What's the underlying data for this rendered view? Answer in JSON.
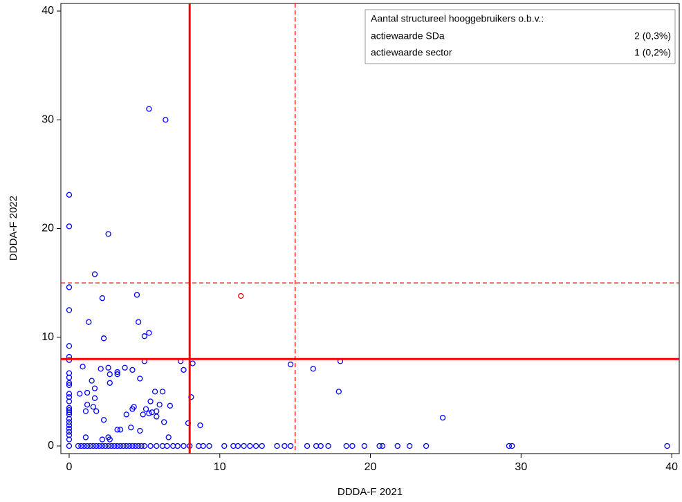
{
  "chart_data": {
    "type": "scatter",
    "x_label": "DDDA-F 2021",
    "y_label": "DDDA-F 2022",
    "xlim": [
      -0.55,
      40.5
    ],
    "ylim": [
      -0.7,
      40.7
    ],
    "xticks": [
      0,
      10,
      20,
      30,
      40
    ],
    "yticks": [
      0,
      10,
      20,
      30,
      40
    ],
    "grid": false,
    "ref_color": "#ff0000",
    "ref_lines": {
      "x": [
        {
          "value": 8,
          "style": "solid"
        },
        {
          "value": 15,
          "style": "dashed"
        }
      ],
      "y": [
        {
          "value": 8,
          "style": "solid"
        },
        {
          "value": 15,
          "style": "dashed"
        }
      ]
    },
    "legend_table": {
      "title": "Aantal structureel hooggebruikers o.b.v.:",
      "rows": [
        [
          "actiewaarde SDa",
          "2 (0,3%)"
        ],
        [
          "actiewaarde sector",
          "1 (0,2%)"
        ]
      ]
    },
    "series": [
      {
        "color": "#0000ff",
        "x": [
          5.3,
          6.4,
          0,
          0,
          2.6,
          1.7,
          0,
          4.5,
          2.2,
          0,
          1.3,
          4.6,
          5.3,
          5.0,
          2.3,
          0,
          0,
          0,
          5.0,
          7.4,
          8.2,
          14.7,
          18.0,
          16.2,
          7.6,
          0.9,
          2.1,
          2.6,
          3.7,
          4.2,
          3.2,
          3.2,
          2.7,
          4.7,
          0,
          0,
          0,
          0,
          1.5,
          2.7,
          1.7,
          17.9,
          5.7,
          6.2,
          0.7,
          1.2,
          0,
          0,
          8.1,
          1.7,
          5.4,
          0,
          1.2,
          6.0,
          6.7,
          4.3,
          4.2,
          5.1,
          0,
          0,
          0,
          1.6,
          1.8,
          1.1,
          5.8,
          5.3,
          4.9,
          5.5,
          3.8,
          5.8,
          24.8,
          0,
          0,
          0,
          0,
          2.3,
          6.3,
          7.9,
          8.7,
          0,
          0,
          0,
          0,
          3.2,
          3.4,
          4.1,
          4.7,
          1.1,
          2.6,
          2.7,
          2.2,
          6.6,
          0,
          0.6,
          0.8,
          1.0,
          1.2,
          1.4,
          1.6,
          1.8,
          2.0,
          2.2,
          2.4,
          2.6,
          2.8,
          3.0,
          3.2,
          3.4,
          3.6,
          3.8,
          4.0,
          4.2,
          4.4,
          4.6,
          4.8,
          5.0,
          5.4,
          5.8,
          6.2,
          6.5,
          6.9,
          7.2,
          7.6,
          8.0,
          8.6,
          8.9,
          9.3,
          10.3,
          10.9,
          11.2,
          11.6,
          12.0,
          12.4,
          12.8,
          13.8,
          14.3,
          14.7,
          15.8,
          16.4,
          16.7,
          17.2,
          18.4,
          18.8,
          19.6,
          20.6,
          20.8,
          21.8,
          22.6,
          23.7,
          29.2,
          29.4,
          39.7
        ],
        "y": [
          31.0,
          30.0,
          23.1,
          20.2,
          19.5,
          15.8,
          14.6,
          13.9,
          13.6,
          12.5,
          11.4,
          11.4,
          10.4,
          10.1,
          9.9,
          9.2,
          8.2,
          7.9,
          7.8,
          7.8,
          7.6,
          7.5,
          7.8,
          7.1,
          7.0,
          7.3,
          7.1,
          7.2,
          7.2,
          7.0,
          6.8,
          6.6,
          6.6,
          6.2,
          6.7,
          6.3,
          5.8,
          5.6,
          6.0,
          5.8,
          5.3,
          5.0,
          5.0,
          5.0,
          4.8,
          4.9,
          4.8,
          4.5,
          4.5,
          4.4,
          4.1,
          4.1,
          3.8,
          3.8,
          3.7,
          3.6,
          3.4,
          3.4,
          3.5,
          3.3,
          3.1,
          3.6,
          3.2,
          3.2,
          3.2,
          3.0,
          2.9,
          3.1,
          2.9,
          2.7,
          2.6,
          2.9,
          2.5,
          2.2,
          1.9,
          2.4,
          2.2,
          2.1,
          1.9,
          1.6,
          1.3,
          1.0,
          0.6,
          1.5,
          1.5,
          1.7,
          1.4,
          0.8,
          0.8,
          0.6,
          0.6,
          0.8,
          0,
          0,
          0,
          0,
          0,
          0,
          0,
          0,
          0,
          0,
          0,
          0,
          0,
          0,
          0,
          0,
          0,
          0,
          0,
          0,
          0,
          0,
          0,
          0,
          0,
          0,
          0,
          0,
          0,
          0,
          0,
          0,
          0,
          0,
          0,
          0,
          0,
          0,
          0,
          0,
          0,
          0,
          0,
          0,
          0,
          0,
          0,
          0,
          0,
          0,
          0,
          0,
          0,
          0,
          0,
          0,
          0,
          0,
          0,
          0
        ]
      },
      {
        "color": "#ff0000",
        "x": [
          11.4
        ],
        "y": [
          13.8
        ]
      }
    ]
  }
}
